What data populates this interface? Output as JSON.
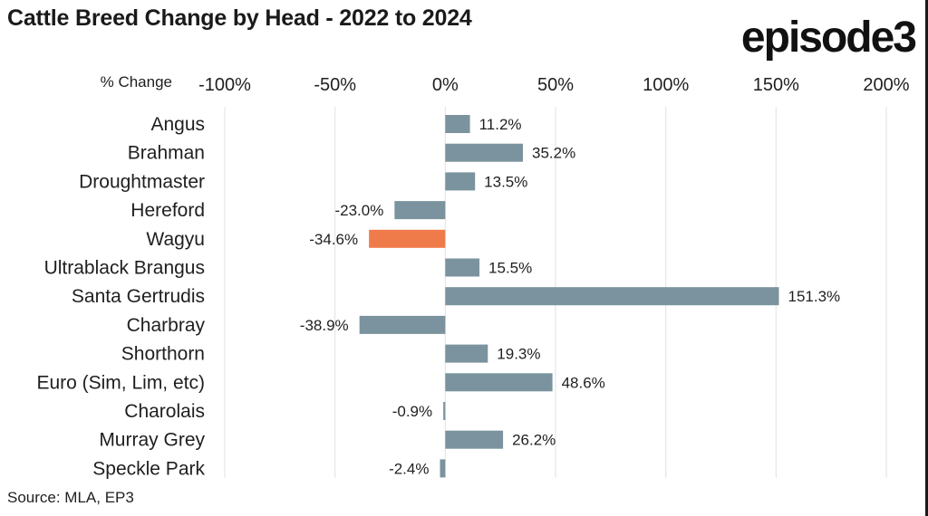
{
  "header": {
    "title": "Cattle Breed Change by Head - 2022 to 2024",
    "logo": "episode3"
  },
  "footer": {
    "source": "Source: MLA, EP3"
  },
  "colors": {
    "bar_default": "#7b939e",
    "bar_highlight": "#f07b4a",
    "gridline": "#e6e6e6"
  },
  "chart_data": {
    "type": "bar",
    "orientation": "horizontal",
    "title": "Cattle Breed Change by Head - 2022 to 2024",
    "xlabel": "% Change",
    "ylabel": "",
    "xlim": [
      -100,
      200
    ],
    "x_ticks": [
      -100,
      -50,
      0,
      50,
      100,
      150,
      200
    ],
    "x_tick_labels": [
      "-100%",
      "-50%",
      "0%",
      "50%",
      "100%",
      "150%",
      "200%"
    ],
    "grid": true,
    "categories": [
      "Angus",
      "Brahman",
      "Droughtmaster",
      "Hereford",
      "Wagyu",
      "Ultrablack Brangus",
      "Santa Gertrudis",
      "Charbray",
      "Shorthorn",
      "Euro (Sim, Lim, etc)",
      "Charolais",
      "Murray Grey",
      "Speckle Park"
    ],
    "values": [
      11.2,
      35.2,
      13.5,
      -23.0,
      -34.6,
      15.5,
      151.3,
      -38.9,
      19.3,
      48.6,
      -0.9,
      26.2,
      -2.4
    ],
    "data_labels": [
      "11.2%",
      "35.2%",
      "13.5%",
      "-23.0%",
      "-34.6%",
      "15.5%",
      "151.3%",
      "-38.9%",
      "19.3%",
      "48.6%",
      "-0.9%",
      "26.2%",
      "-2.4%"
    ],
    "highlight": "Wagyu"
  }
}
